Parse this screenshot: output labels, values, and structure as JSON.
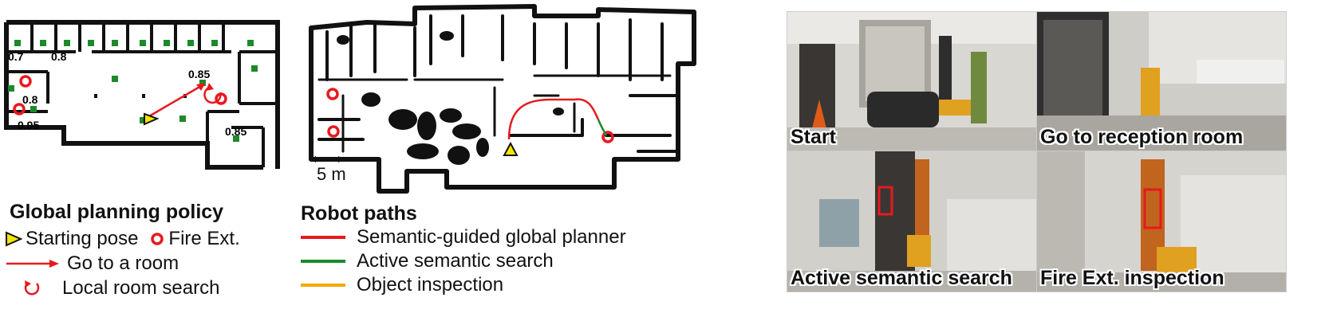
{
  "global_planning": {
    "title": "Global planning policy",
    "scores": [
      "0.7",
      "0.8",
      "0.85",
      "0.8",
      "0.95",
      "0.85"
    ],
    "legend": {
      "starting_pose": "Starting pose",
      "fire_ext": "Fire Ext.",
      "go_to_room": "Go to a room",
      "local_search": "Local room search"
    }
  },
  "robot_paths": {
    "title": "Robot paths",
    "scale_label": "5 m",
    "legend": [
      {
        "label": "Semantic-guided global planner",
        "color": "#e8191e"
      },
      {
        "label": "Active semantic search",
        "color": "#1d8a2a"
      },
      {
        "label": "Object inspection",
        "color": "#f5a800"
      }
    ]
  },
  "photos": [
    {
      "label": "Start"
    },
    {
      "label": "Go to reception room"
    },
    {
      "label": "Active semantic search"
    },
    {
      "label": "Fire Ext. inspection"
    }
  ],
  "colors": {
    "fire_ext": "#e8191e",
    "room_marker": "#1d8a2a",
    "start_pose": "#f2e600",
    "wall": "#111111"
  }
}
